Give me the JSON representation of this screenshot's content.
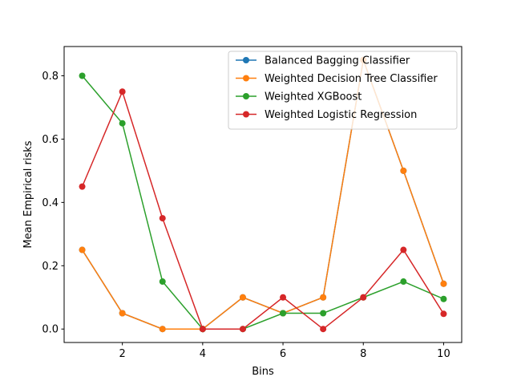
{
  "chart_data": {
    "type": "line",
    "title": "",
    "xlabel": "Bins",
    "ylabel": "Mean Empirical risks",
    "xlim": [
      0.55,
      10.45
    ],
    "ylim": [
      -0.0425,
      0.8925
    ],
    "xticks": [
      2,
      4,
      6,
      8,
      10
    ],
    "yticks": [
      0.0,
      0.2,
      0.4,
      0.6,
      0.8
    ],
    "xtick_labels": [
      "2",
      "4",
      "6",
      "8",
      "10"
    ],
    "ytick_labels": [
      "0.0",
      "0.2",
      "0.4",
      "0.6",
      "0.8"
    ],
    "grid": false,
    "legend_position": "top-right",
    "x": [
      1,
      2,
      3,
      4,
      5,
      6,
      7,
      8,
      9,
      10
    ],
    "series": [
      {
        "name": "Balanced Bagging Classifier",
        "color": "#1f77b4",
        "values": [
          0.25,
          0.05,
          0.0,
          0.0,
          0.1,
          0.05,
          0.1,
          0.85,
          0.5,
          0.143
        ]
      },
      {
        "name": "Weighted Decision Tree Classifier",
        "color": "#ff7f0e",
        "values": [
          0.25,
          0.05,
          0.0,
          0.0,
          0.1,
          0.05,
          0.1,
          0.85,
          0.5,
          0.143
        ]
      },
      {
        "name": "Weighted XGBoost",
        "color": "#2ca02c",
        "values": [
          0.8,
          0.65,
          0.15,
          0.0,
          0.0,
          0.05,
          0.05,
          0.1,
          0.15,
          0.095
        ]
      },
      {
        "name": "Weighted Logistic Regression",
        "color": "#d62728",
        "values": [
          0.45,
          0.75,
          0.35,
          0.0,
          0.0,
          0.1,
          0.0,
          0.1,
          0.25,
          0.048
        ]
      }
    ]
  }
}
